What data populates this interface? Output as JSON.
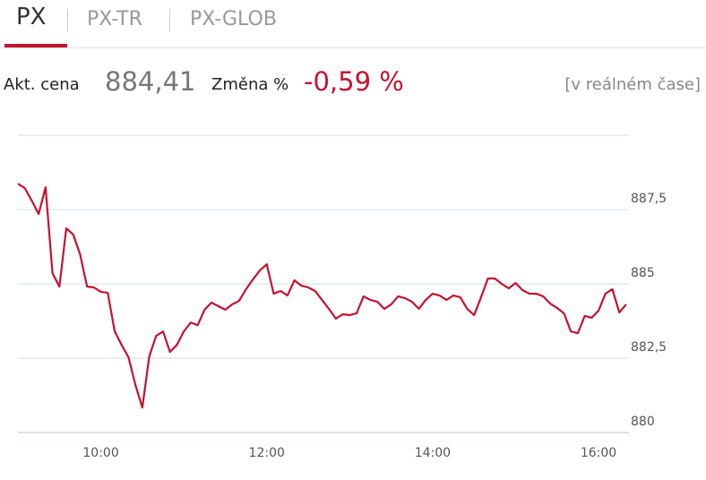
{
  "tabs": [
    "PX",
    "PX-TR",
    "PX-GLOB"
  ],
  "price_label": "Akt. cena",
  "price": "884,41",
  "change_label": "Změna %",
  "change": "-0,59 %",
  "realtime": "[v reálném čase]",
  "chart_data": {
    "type": "line",
    "color": "#c41230",
    "x": [
      "09:00",
      "09:05",
      "09:10",
      "09:15",
      "09:20",
      "09:25",
      "09:30",
      "09:35",
      "09:40",
      "09:45",
      "09:50",
      "09:55",
      "10:00",
      "10:05",
      "10:10",
      "10:15",
      "10:20",
      "10:25",
      "10:30",
      "10:35",
      "10:40",
      "10:45",
      "10:50",
      "10:55",
      "11:00",
      "11:05",
      "11:10",
      "11:15",
      "11:20",
      "11:25",
      "11:30",
      "11:35",
      "11:40",
      "11:45",
      "11:50",
      "11:55",
      "12:00",
      "12:05",
      "12:10",
      "12:15",
      "12:20",
      "12:25",
      "12:30",
      "12:35",
      "12:40",
      "12:45",
      "12:50",
      "12:55",
      "13:00",
      "13:05",
      "13:10",
      "13:15",
      "13:20",
      "13:25",
      "13:30",
      "13:35",
      "13:40",
      "13:45",
      "13:50",
      "13:55",
      "14:00",
      "14:05",
      "14:10",
      "14:15",
      "14:20",
      "14:25",
      "14:30",
      "14:35",
      "14:40",
      "14:45",
      "14:50",
      "14:55",
      "15:00",
      "15:05",
      "15:10",
      "15:15",
      "15:20",
      "15:25",
      "15:30",
      "15:35",
      "15:40",
      "15:45",
      "15:50",
      "15:55",
      "16:00",
      "16:05",
      "16:10",
      "16:15",
      "16:20"
    ],
    "values": [
      888.37,
      888.22,
      887.8,
      887.35,
      888.25,
      885.36,
      884.91,
      886.87,
      886.66,
      885.99,
      884.91,
      884.88,
      884.73,
      884.7,
      883.4,
      882.95,
      882.53,
      881.6,
      880.84,
      882.56,
      883.25,
      883.4,
      882.71,
      882.95,
      883.4,
      883.7,
      883.61,
      884.13,
      884.37,
      884.25,
      884.13,
      884.31,
      884.43,
      884.82,
      885.15,
      885.45,
      885.66,
      884.67,
      884.76,
      884.61,
      885.12,
      884.94,
      884.88,
      884.76,
      884.46,
      884.16,
      883.83,
      883.98,
      883.95,
      884.01,
      884.58,
      884.46,
      884.4,
      884.16,
      884.31,
      884.58,
      884.52,
      884.4,
      884.16,
      884.46,
      884.67,
      884.61,
      884.46,
      884.61,
      884.55,
      884.16,
      883.95,
      884.55,
      885.18,
      885.18,
      885.0,
      884.85,
      885.03,
      884.79,
      884.67,
      884.67,
      884.58,
      884.34,
      884.19,
      884.01,
      883.4,
      883.34,
      883.92,
      883.86,
      884.1,
      884.67,
      884.82,
      884.04,
      884.31
    ],
    "xlim": [
      "09:00",
      "16:22"
    ],
    "xticks": [
      "10:00",
      "12:00",
      "14:00",
      "16:00"
    ],
    "ylim": [
      880,
      890
    ],
    "yticks": [
      880,
      {
        "value": 882.5,
        "label": "882,5"
      },
      885,
      {
        "value": 887.5,
        "label": "887,5"
      }
    ],
    "grid": true
  }
}
